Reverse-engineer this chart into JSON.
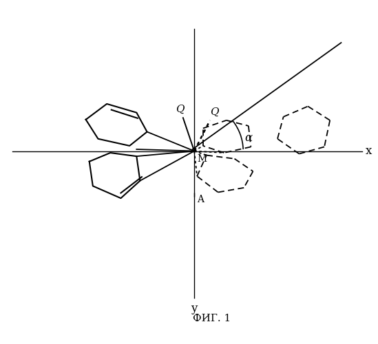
{
  "title": "ФИГ. 1",
  "bg_color": "#ffffff",
  "line_color": "#000000",
  "label_x": "x",
  "label_y": "y",
  "label_M": "M",
  "label_A": "A",
  "label_Q1": "Q",
  "label_Q2": "Q",
  "label_alpha": "α"
}
